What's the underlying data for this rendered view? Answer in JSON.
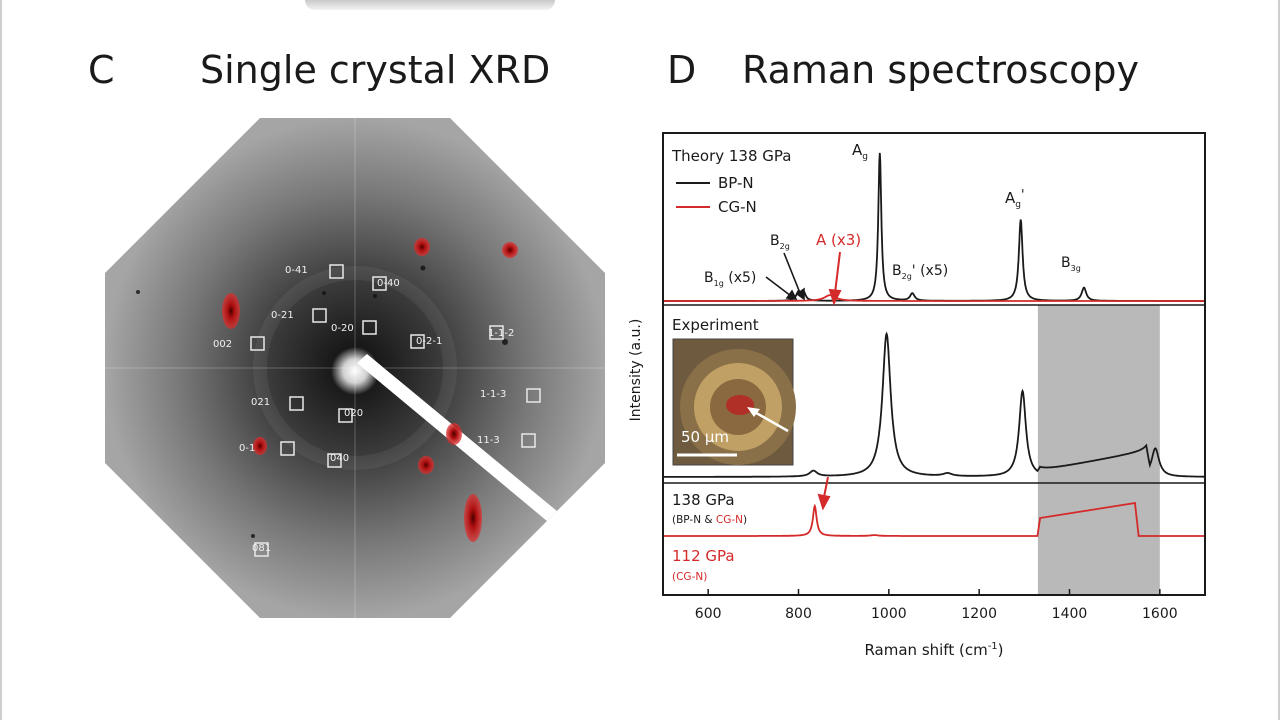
{
  "panel_c": {
    "letter": "C",
    "title": "Single crystal XRD",
    "spots": [
      "0-41",
      "0-40",
      "0-21",
      "0-20",
      "0-2-1",
      "1-1-2",
      "002",
      "021",
      "020",
      "1-1-3",
      "0-1",
      "11-3",
      "040",
      "081"
    ]
  },
  "panel_d": {
    "letter": "D",
    "title": "Raman spectroscopy",
    "theory": {
      "header": "Theory 138 GPa",
      "legend_bp": "BP-N",
      "legend_cg": "CG-N"
    },
    "peak_labels": {
      "ag": "A",
      "ag_sub": "g",
      "ag2": "A",
      "ag2_sub": "g",
      "ag2_prime": "'",
      "b2g": "B",
      "b2g_sub": "2g",
      "b1g": "B",
      "b1g_sub": "1g",
      "b1g_mult": " (x5)",
      "b2g2": "B",
      "b2g2_sub": "2g",
      "b2g2_mult": "' (x5)",
      "b3g": "B",
      "b3g_sub": "3g",
      "a_red": "A (x3)"
    },
    "experiment": {
      "label": "Experiment",
      "scale_bar": "50 μm",
      "p138": "138 GPa",
      "p138_note_a": "(BP-N & ",
      "p138_note_b": "CG-N",
      "p138_note_c": ")",
      "p112": "112 GPa",
      "p112_note": "(CG-N)"
    }
  },
  "chart_data": {
    "type": "line",
    "xlabel": "Raman shift (cm",
    "xlabel_sup": "-1",
    "xlabel_close": ")",
    "ylabel": "Intensity (a.u.)",
    "xlim": [
      500,
      1700
    ],
    "xticks": [
      600,
      800,
      1000,
      1200,
      1400,
      1600
    ],
    "highlight_region": [
      1330,
      1600
    ],
    "colors": {
      "bp": "#1a1a1a",
      "cg": "#d42a2a",
      "band": "#b9b9b9"
    },
    "series": [
      {
        "name": "Theory BP-N",
        "peaks": [
          [
            800,
            0.06,
            6
          ],
          [
            812,
            0.05,
            5
          ],
          [
            980,
            1.0,
            4
          ],
          [
            1052,
            0.05,
            6
          ],
          [
            1292,
            0.55,
            5
          ],
          [
            1432,
            0.09,
            6
          ]
        ]
      },
      {
        "name": "Theory CG-N",
        "peaks": [
          [
            870,
            0.04,
            15
          ]
        ]
      },
      {
        "name": "Experiment 138 GPa",
        "peaks": [
          [
            833,
            0.04,
            10
          ],
          [
            995,
            1.0,
            11
          ],
          [
            1130,
            0.02,
            12
          ],
          [
            1296,
            0.6,
            9
          ],
          [
            1590,
            0.2,
            10
          ]
        ],
        "broad_band": [
          1335,
          1570,
          0.04,
          0.18
        ]
      },
      {
        "name": "Experiment 112 GPa",
        "peaks": [
          [
            836,
            0.5,
            5
          ],
          [
            968,
            0.015,
            10
          ]
        ],
        "broad_band": [
          1335,
          1545,
          0.3,
          0.55
        ]
      }
    ]
  }
}
